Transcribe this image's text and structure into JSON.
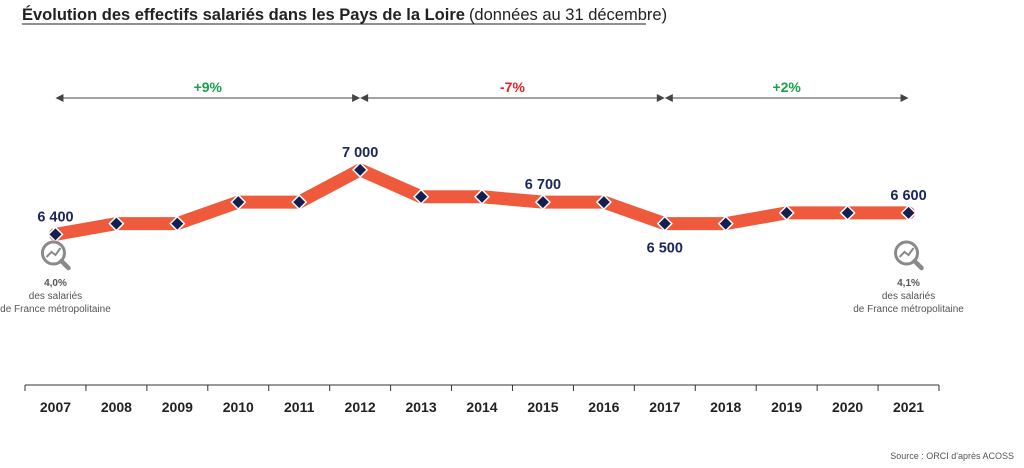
{
  "title": "Évolution des effectifs salariés dans les Pays de la Loire",
  "subtitle": "(données au 31 décembre)",
  "source": "Source : ORCI d'après ACOSS",
  "colors": {
    "line": "#ef5a3c",
    "marker": "#141f4f",
    "label": "#1c2657",
    "positive": "#1aa04a",
    "negative": "#e02222",
    "axis": "#333333",
    "note": "#555555",
    "icon": "#8a8a8a"
  },
  "chart_data": {
    "type": "line",
    "x": [
      2007,
      2008,
      2009,
      2010,
      2011,
      2012,
      2013,
      2014,
      2015,
      2016,
      2017,
      2018,
      2019,
      2020,
      2021
    ],
    "x_tick_labels": [
      "2007",
      "2008",
      "2009",
      "2010",
      "2011",
      "2012",
      "2013",
      "2014",
      "2015",
      "2016",
      "2017",
      "2018",
      "2019",
      "2020",
      "2021"
    ],
    "series": [
      {
        "values": [
          6400,
          6500,
          6500,
          6700,
          6700,
          7000,
          6750,
          6750,
          6700,
          6700,
          6500,
          6500,
          6600,
          6600,
          6600
        ]
      }
    ],
    "data_labels": [
      {
        "x": 2007,
        "text": "6 400",
        "pos": "above"
      },
      {
        "x": 2012,
        "text": "7 000",
        "pos": "above"
      },
      {
        "x": 2015,
        "text": "6 700",
        "pos": "above"
      },
      {
        "x": 2017,
        "text": "6 500",
        "pos": "below"
      },
      {
        "x": 2021,
        "text": "6 600",
        "pos": "above"
      }
    ],
    "periods": [
      {
        "from": 2007,
        "to": 2012,
        "label": "+9%",
        "trend": "positive"
      },
      {
        "from": 2012,
        "to": 2017,
        "label": "-7%",
        "trend": "negative"
      },
      {
        "from": 2017,
        "to": 2021,
        "label": "+2%",
        "trend": "positive"
      }
    ],
    "annotations": [
      {
        "x": 2007,
        "icon": "magnifier-chart-icon",
        "lines": [
          "4,0%",
          "des salariés",
          "de France métropolitaine"
        ]
      },
      {
        "x": 2021,
        "icon": "magnifier-chart-icon",
        "lines": [
          "4,1%",
          "des salariés",
          "de France métropolitaine"
        ]
      }
    ],
    "ylim": [
      5000,
      8300
    ],
    "grid": false,
    "legend": "none"
  }
}
